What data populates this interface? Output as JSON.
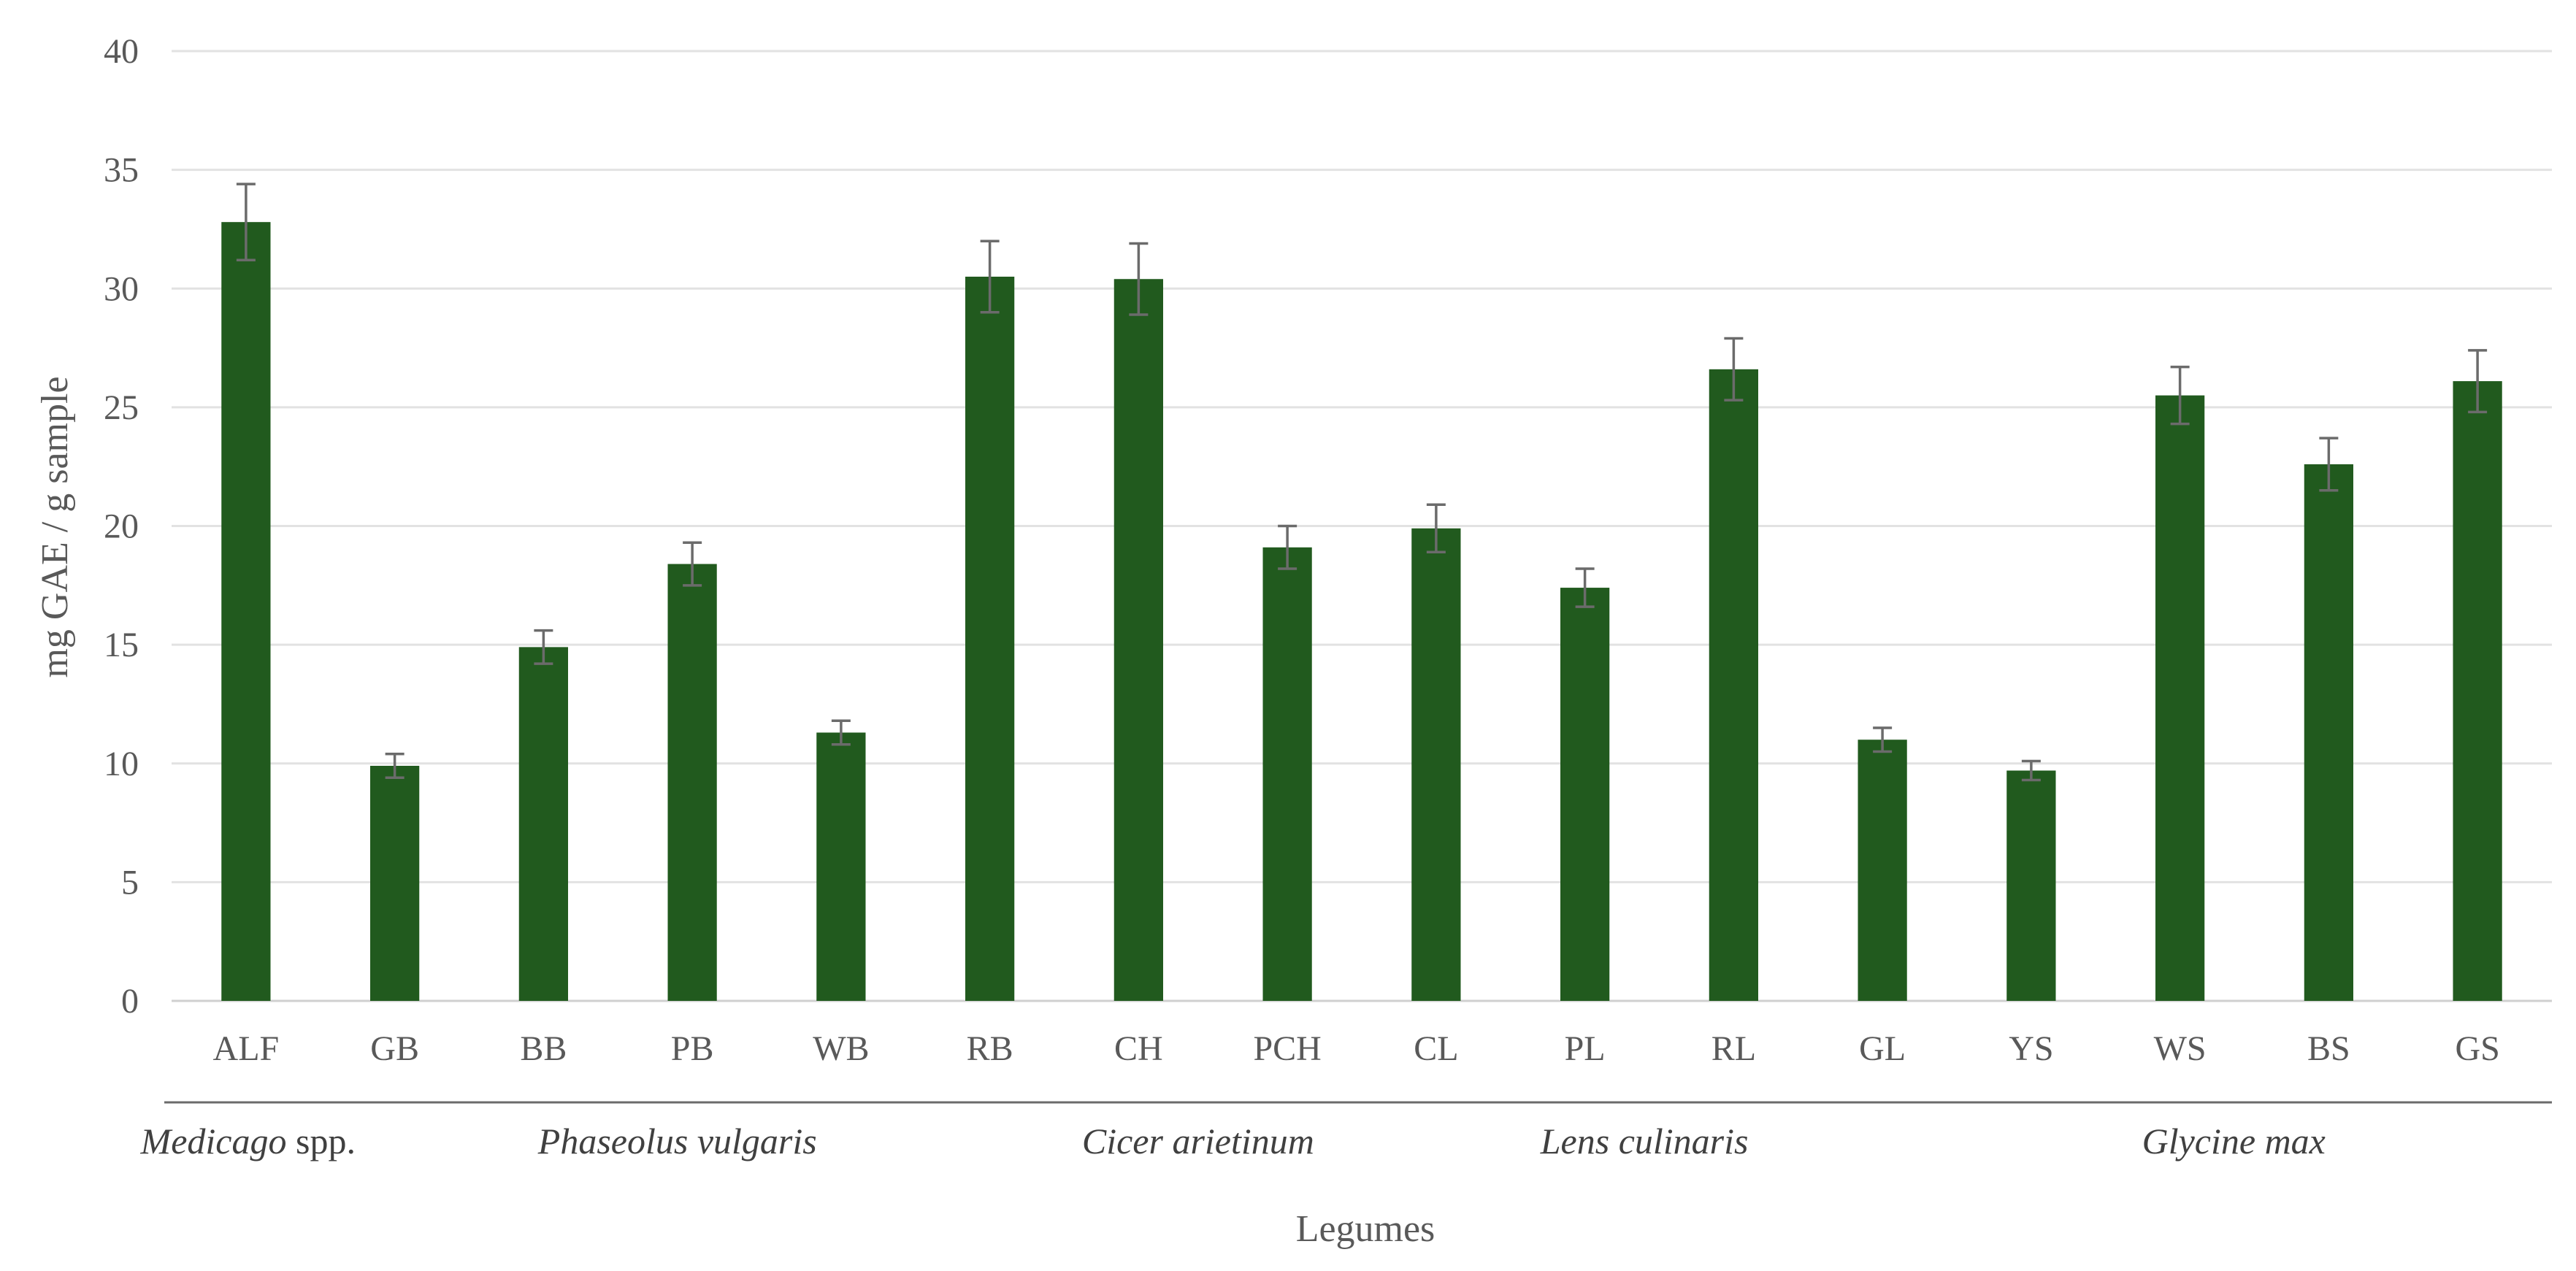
{
  "chart_data": {
    "type": "bar",
    "title": "",
    "xlabel": "Legumes",
    "ylabel": "mg GAE  / g sample",
    "ylim": [
      0,
      40
    ],
    "yticks": [
      0,
      5,
      10,
      15,
      20,
      25,
      30,
      35,
      40
    ],
    "grid": true,
    "legend": "none",
    "bar_color": "#215a1e",
    "errorbar_color": "#6b6b6b",
    "categories": [
      "ALF",
      "GB",
      "BB",
      "PB",
      "WB",
      "RB",
      "CH",
      "PCH",
      "CL",
      "PL",
      "RL",
      "GL",
      "YS",
      "WS",
      "BS",
      "GS"
    ],
    "values": [
      32.8,
      9.9,
      14.9,
      18.4,
      11.3,
      30.5,
      30.4,
      19.1,
      19.9,
      17.4,
      26.6,
      11.0,
      9.7,
      25.5,
      22.6,
      26.1
    ],
    "errors": [
      1.6,
      0.5,
      0.7,
      0.9,
      0.5,
      1.5,
      1.5,
      0.9,
      1.0,
      0.8,
      1.3,
      0.5,
      0.4,
      1.2,
      1.1,
      1.3
    ],
    "groups": [
      {
        "name": "Medicago",
        "suffix": " spp.",
        "categories": [
          "ALF"
        ]
      },
      {
        "name": "Phaseolus vulgaris",
        "suffix": "",
        "categories": [
          "GB",
          "BB",
          "PB",
          "WB",
          "RB"
        ]
      },
      {
        "name": "Cicer arietinum",
        "suffix": "",
        "categories": [
          "CH",
          "PCH"
        ]
      },
      {
        "name": "Lens culinaris",
        "suffix": "",
        "categories": [
          "CL",
          "PL",
          "RL",
          "GL"
        ]
      },
      {
        "name": "Glycine max",
        "suffix": "",
        "categories": [
          "YS",
          "WS",
          "BS",
          "GS"
        ]
      }
    ]
  }
}
